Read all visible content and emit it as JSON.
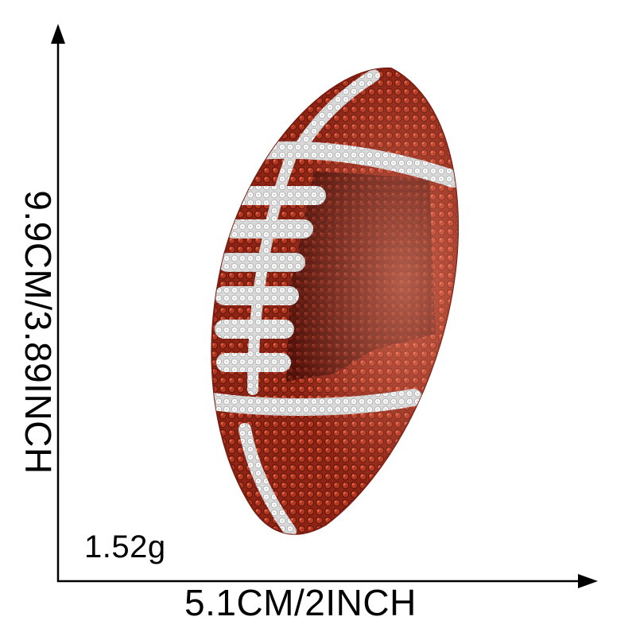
{
  "dimensions": {
    "height_label": "9.9CM/3.89INCH",
    "width_label": "5.1CM/2INCH",
    "weight_label": "1.52g"
  },
  "product": {
    "name_icon": "football-sequin-patch",
    "colors": {
      "sequin_red": "#b3361f",
      "sequin_dark": "#6b1a10",
      "sequin_highlight": "#f07a5e",
      "stripe_white": "#f4f4f4",
      "axis": "#000000"
    }
  }
}
